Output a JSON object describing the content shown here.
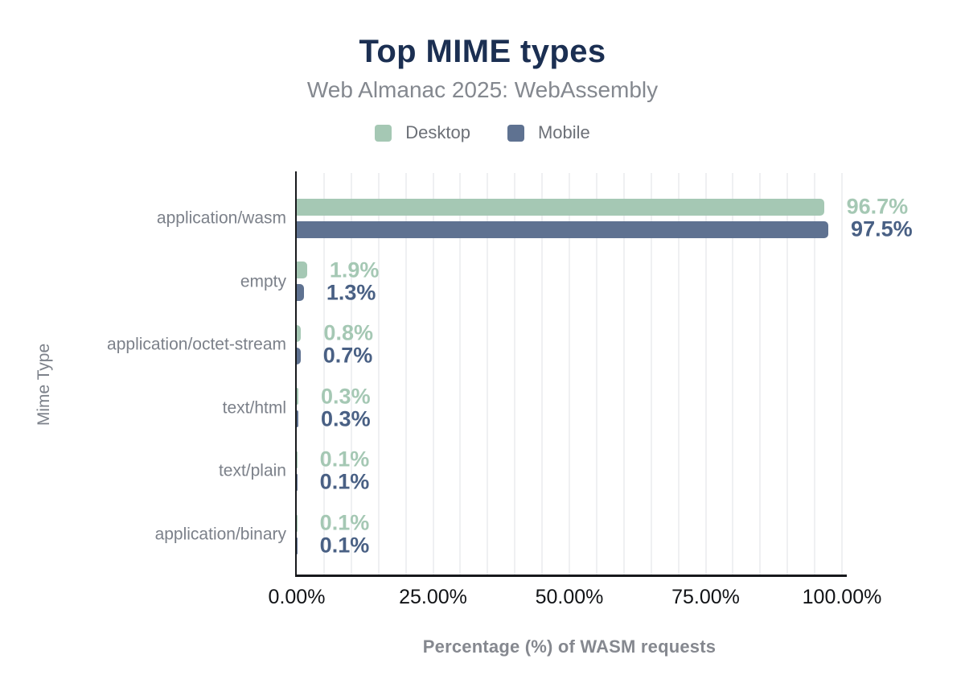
{
  "page": {
    "background": "#ffffff"
  },
  "header": {
    "title": "Top MIME types",
    "subtitle": "Web Almanac 2025: WebAssembly",
    "title_color": "#1b2f52",
    "subtitle_color": "#84888f"
  },
  "legend": {
    "text_color": "#6c7077",
    "items": [
      {
        "label": "Desktop",
        "color": "#a5c8b4"
      },
      {
        "label": "Mobile",
        "color": "#5f7291"
      }
    ]
  },
  "chart_data": {
    "type": "bar",
    "orientation": "horizontal",
    "title": "Top MIME types",
    "subtitle": "Web Almanac 2025: WebAssembly",
    "categories": [
      "application/wasm",
      "empty",
      "application/octet-stream",
      "text/html",
      "text/plain",
      "application/binary"
    ],
    "series": [
      {
        "name": "Desktop",
        "color": "#a5c8b4",
        "label_color": "#a5c8b4",
        "values": [
          96.7,
          1.9,
          0.8,
          0.3,
          0.1,
          0.1
        ],
        "labels": [
          "96.7%",
          "1.9%",
          "0.8%",
          "0.3%",
          "0.1%",
          "0.1%"
        ]
      },
      {
        "name": "Mobile",
        "color": "#5f7291",
        "label_color": "#496084",
        "values": [
          97.5,
          1.3,
          0.7,
          0.3,
          0.1,
          0.1
        ],
        "labels": [
          "97.5%",
          "1.3%",
          "0.7%",
          "0.3%",
          "0.1%",
          "0.1%"
        ]
      }
    ],
    "xlabel": "Percentage (%) of WASM requests",
    "ylabel": "Mime Type",
    "xlim": [
      0,
      100
    ],
    "x_ticks": [
      {
        "label": "0.00%",
        "value": 0
      },
      {
        "label": "25.00%",
        "value": 25
      },
      {
        "label": "50.00%",
        "value": 50
      },
      {
        "label": "75.00%",
        "value": 75
      },
      {
        "label": "100.00%",
        "value": 100
      }
    ],
    "grid": {
      "on": true,
      "step_pct": 5,
      "color": "#eff0f2"
    },
    "legend_position": "top",
    "axis_line_color": "#17191c",
    "tick_text_color": "#111316",
    "category_text_color": "#7c818a",
    "axis_title_color": "#85888f"
  }
}
